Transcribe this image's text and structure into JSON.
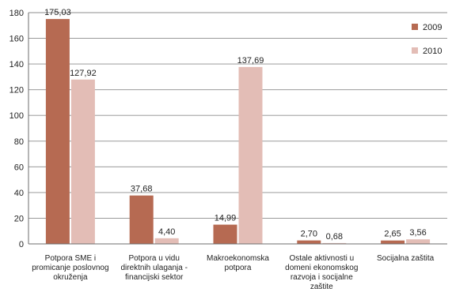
{
  "chart_data": {
    "type": "bar",
    "categories": [
      [
        "Potpora SME i",
        "promicanje poslovnog",
        "okruženja"
      ],
      [
        "Potpora u vidu",
        "direktnih ulaganja -",
        "financijski sektor"
      ],
      [
        "Makroekonomska",
        "potpora"
      ],
      [
        "Ostale aktivnosti u",
        "domeni ekonomskog",
        "razvoja i socijalne",
        "zaštite"
      ],
      [
        "Socijalna zaštita"
      ]
    ],
    "series": [
      {
        "name": "2009",
        "color": "#b66a52",
        "values": [
          175.03,
          37.68,
          14.99,
          2.7,
          2.65
        ],
        "labels": [
          "175,03",
          "37,68",
          "14,99",
          "2,70",
          "2,65"
        ]
      },
      {
        "name": "2010",
        "color": "#e3bdb6",
        "values": [
          127.92,
          4.4,
          137.69,
          0.68,
          3.56
        ],
        "labels": [
          "127,92",
          "4,40",
          "137,69",
          "0,68",
          "3,56"
        ]
      }
    ],
    "yticks": [
      0,
      20,
      40,
      60,
      80,
      100,
      120,
      140,
      160,
      180
    ],
    "ylim": [
      0,
      180
    ],
    "grid": true,
    "legend_position": "top-right",
    "title": "",
    "xlabel": "",
    "ylabel": ""
  }
}
